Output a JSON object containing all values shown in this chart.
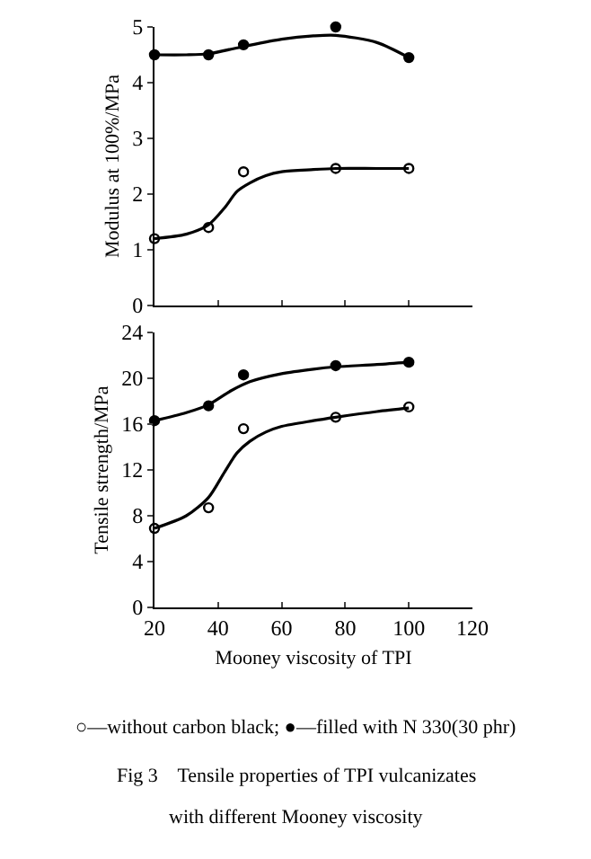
{
  "chart_data": [
    {
      "type": "scatter",
      "ylabel": "Modulus at 100%/MPa",
      "xlim": [
        20,
        120
      ],
      "xticks": [
        20,
        40,
        60,
        80,
        100,
        120
      ],
      "ylim": [
        0,
        5
      ],
      "yticks": [
        0,
        1,
        2,
        3,
        4,
        5
      ],
      "tick_labels": "y",
      "series": [
        {
          "marker": "circle-open",
          "color": "#000000",
          "x": [
            20,
            37,
            48,
            77,
            100
          ],
          "values": [
            1.2,
            1.4,
            2.4,
            2.46,
            2.46
          ]
        },
        {
          "marker": "circle",
          "color": "#000000",
          "x": [
            20,
            37,
            48,
            77,
            100
          ],
          "values": [
            4.5,
            4.5,
            4.68,
            5.0,
            4.45
          ]
        },
        {
          "type": "line",
          "marker": "none",
          "color": "#000000",
          "x": [
            20,
            30,
            37,
            42,
            46,
            50,
            55,
            60,
            70,
            77,
            90,
            100
          ],
          "values": [
            1.2,
            1.28,
            1.45,
            1.75,
            2.05,
            2.2,
            2.33,
            2.4,
            2.44,
            2.46,
            2.46,
            2.46
          ]
        },
        {
          "type": "line",
          "marker": "none",
          "color": "#000000",
          "x": [
            20,
            30,
            37,
            48,
            60,
            70,
            77,
            90,
            100
          ],
          "values": [
            4.5,
            4.5,
            4.52,
            4.65,
            4.78,
            4.84,
            4.85,
            4.72,
            4.45
          ]
        }
      ]
    },
    {
      "type": "scatter",
      "ylabel": "Tensile strength/MPa",
      "xlabel": "Mooney viscosity of TPI",
      "xlim": [
        20,
        120
      ],
      "xticks": [
        20,
        40,
        60,
        80,
        100,
        120
      ],
      "ylim": [
        0,
        24
      ],
      "yticks": [
        0,
        4,
        8,
        12,
        16,
        20,
        24
      ],
      "series": [
        {
          "marker": "circle-open",
          "color": "#000000",
          "x": [
            20,
            37,
            48,
            77,
            100
          ],
          "values": [
            6.9,
            8.7,
            15.6,
            16.6,
            17.5
          ]
        },
        {
          "marker": "circle",
          "color": "#000000",
          "x": [
            20,
            37,
            48,
            77,
            100
          ],
          "values": [
            16.3,
            17.6,
            20.3,
            21.1,
            21.4
          ]
        },
        {
          "type": "line",
          "marker": "none",
          "color": "#000000",
          "x": [
            20,
            30,
            37,
            42,
            46,
            50,
            55,
            60,
            70,
            77,
            90,
            100
          ],
          "values": [
            6.9,
            8.0,
            9.6,
            11.8,
            13.5,
            14.5,
            15.3,
            15.8,
            16.3,
            16.6,
            17.1,
            17.4
          ]
        },
        {
          "type": "line",
          "marker": "none",
          "color": "#000000",
          "x": [
            20,
            30,
            37,
            44,
            50,
            60,
            70,
            77,
            90,
            100
          ],
          "values": [
            16.3,
            17.0,
            17.7,
            18.9,
            19.7,
            20.4,
            20.8,
            21.0,
            21.2,
            21.4
          ]
        }
      ],
      "annotations": [
        "○—without carbon black; ●—filled with N 330(30 phr)",
        "Fig 3    Tensile properties of TPI vulcanizates",
        "with different Mooney viscosity"
      ]
    }
  ]
}
